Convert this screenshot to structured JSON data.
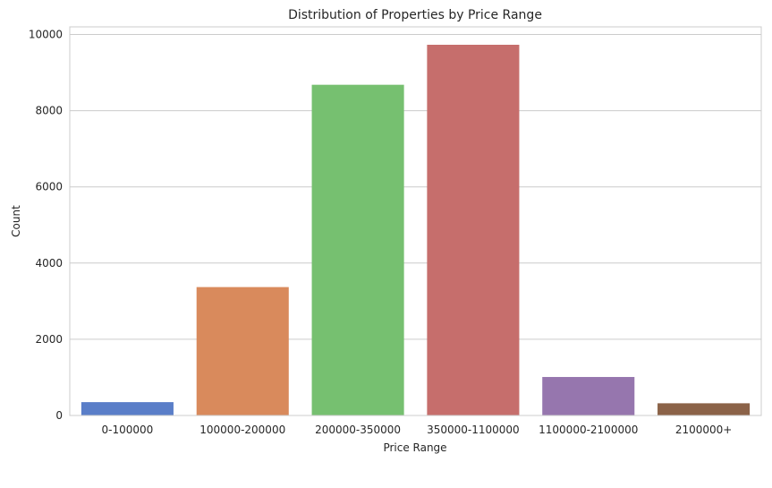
{
  "chart_data": {
    "type": "bar",
    "title": "Distribution of Properties by Price Range",
    "xlabel": "Price Range",
    "ylabel": "Count",
    "categories": [
      "0-100000",
      "100000-200000",
      "200000-350000",
      "350000-1100000",
      "1100000-2100000",
      "2100000+"
    ],
    "values": [
      350,
      3370,
      8680,
      9730,
      1010,
      320
    ],
    "colors": [
      "#5a7ec8",
      "#d98a5c",
      "#76c070",
      "#c66e6c",
      "#9676ae",
      "#8b6248"
    ],
    "ylim": [
      0,
      10200
    ],
    "yticks": [
      0,
      2000,
      4000,
      6000,
      8000,
      10000
    ],
    "grid": true,
    "grid_axis": "y"
  }
}
